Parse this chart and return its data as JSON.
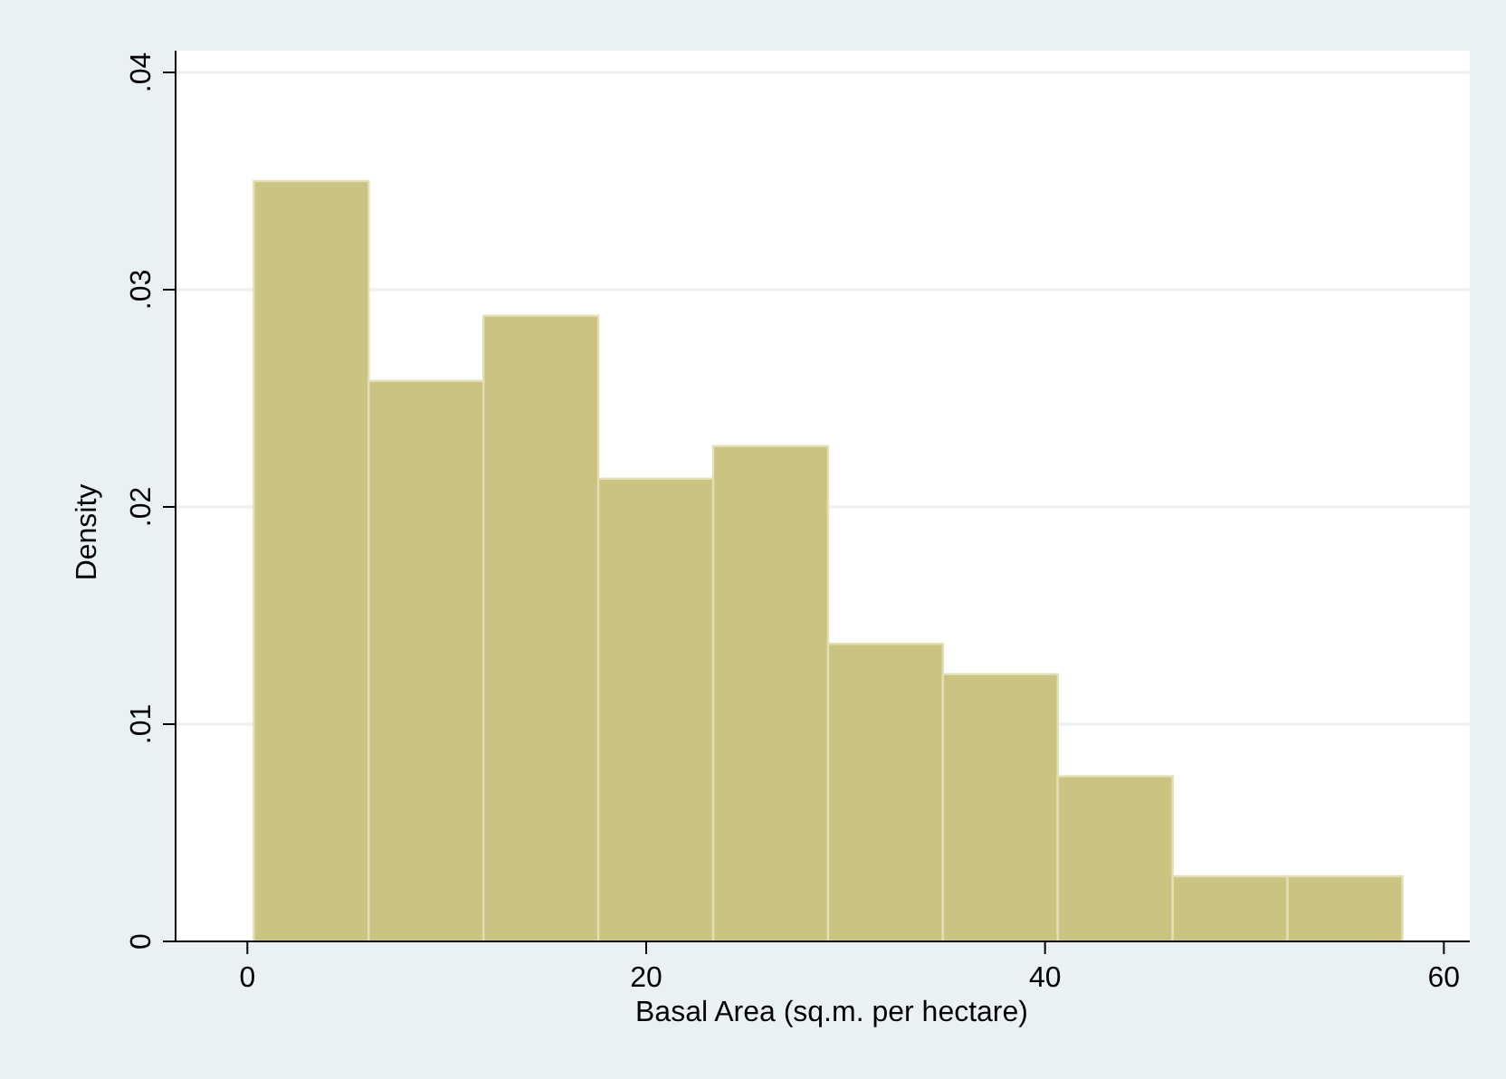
{
  "chart_data": {
    "type": "histogram",
    "xlabel": "Basal Area (sq.m. per hectare)",
    "ylabel": "Density",
    "bins": [
      0.32,
      6.08,
      11.84,
      17.6,
      23.36,
      29.12,
      34.88,
      40.64,
      46.4,
      52.16,
      57.92
    ],
    "values": [
      0.035,
      0.0258,
      0.0288,
      0.0213,
      0.0228,
      0.0137,
      0.0123,
      0.0076,
      0.003,
      0.003
    ],
    "color": "#cbc382",
    "xlim": [
      -3.6,
      61.3
    ],
    "ylim": [
      0,
      0.041
    ],
    "xticks": [
      0,
      20,
      40,
      60
    ],
    "yticks": [
      {
        "value": 0,
        "label": "0"
      },
      {
        "value": 0.01,
        "label": ".01"
      },
      {
        "value": 0.02,
        "label": ".02"
      },
      {
        "value": 0.03,
        "label": ".03"
      },
      {
        "value": 0.04,
        "label": ".04"
      }
    ],
    "grid": "y"
  }
}
